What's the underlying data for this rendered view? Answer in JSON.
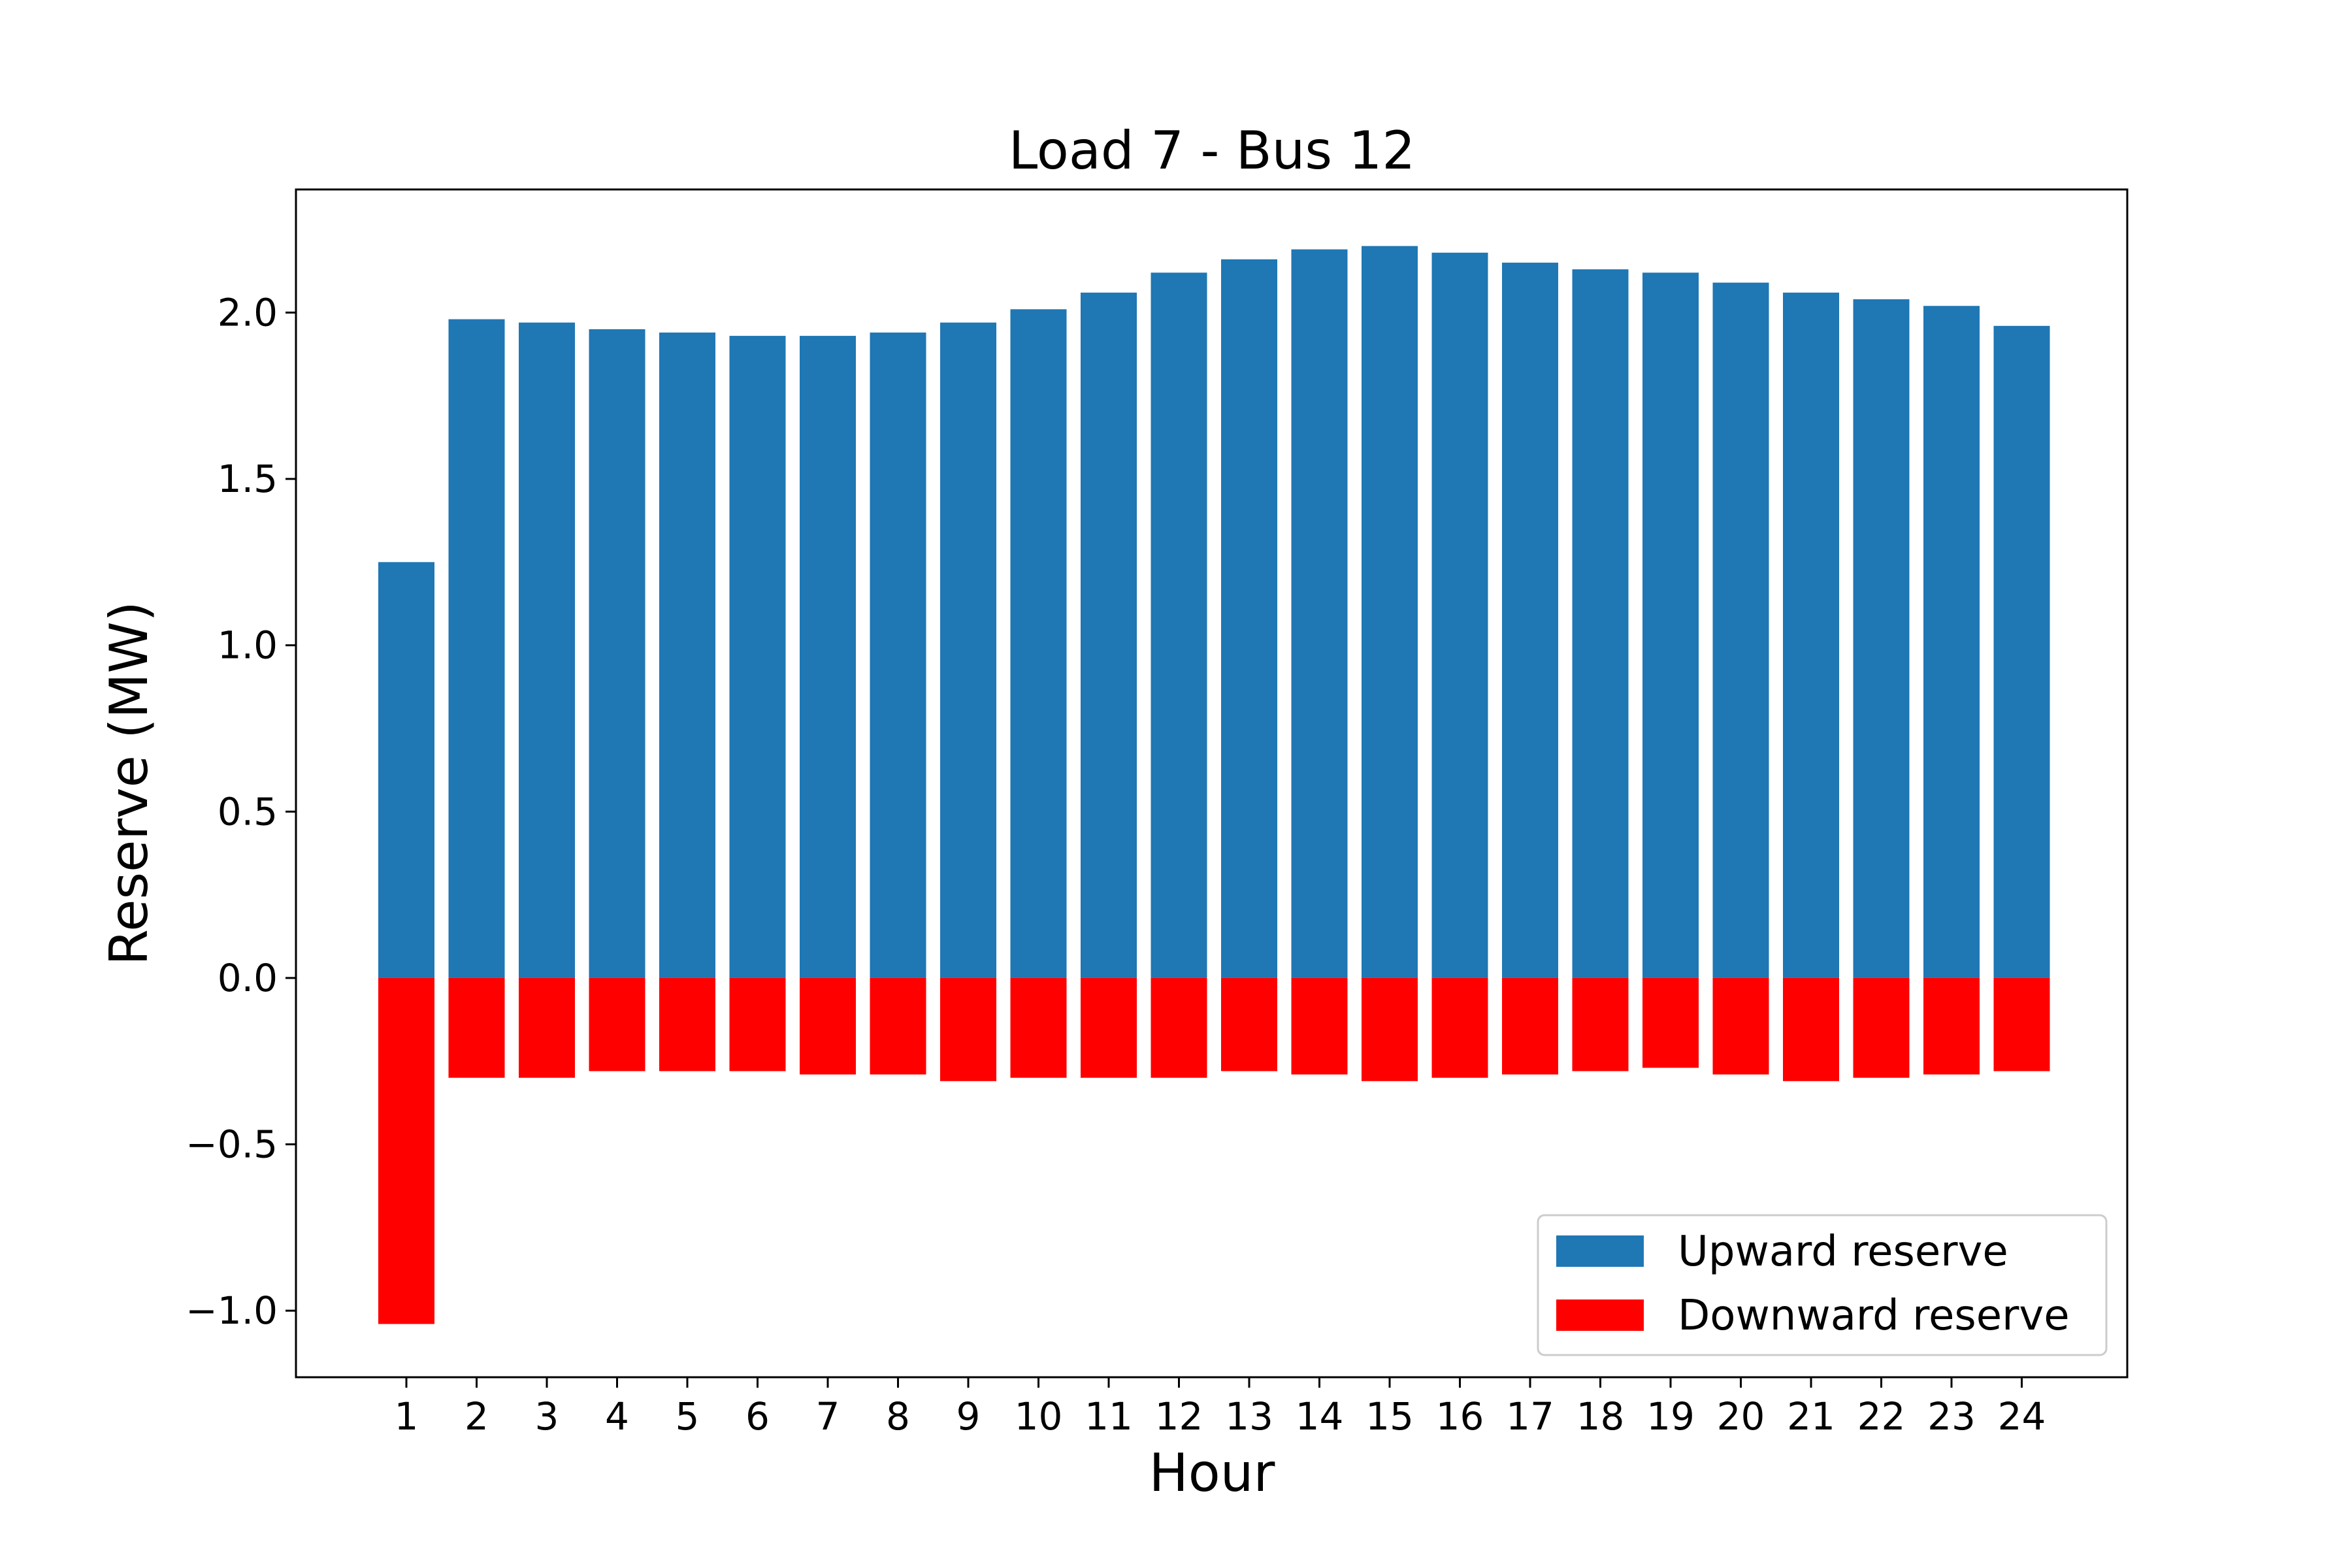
{
  "chart_data": {
    "type": "bar",
    "title": "Load 7 - Bus 12",
    "xlabel": "Hour",
    "ylabel": "Reserve (MW)",
    "categories": [
      "1",
      "2",
      "3",
      "4",
      "5",
      "6",
      "7",
      "8",
      "9",
      "10",
      "11",
      "12",
      "13",
      "14",
      "15",
      "16",
      "17",
      "18",
      "19",
      "20",
      "21",
      "22",
      "23",
      "24"
    ],
    "series": [
      {
        "name": "Upward reserve",
        "color": "#1f77b4",
        "values": [
          1.25,
          1.98,
          1.97,
          1.95,
          1.94,
          1.93,
          1.93,
          1.94,
          1.97,
          2.01,
          2.06,
          2.12,
          2.16,
          2.19,
          2.2,
          2.18,
          2.15,
          2.13,
          2.12,
          2.09,
          2.06,
          2.04,
          2.02,
          1.96
        ]
      },
      {
        "name": "Downward reserve",
        "color": "#ff0000",
        "values": [
          -1.04,
          -0.3,
          -0.3,
          -0.28,
          -0.28,
          -0.28,
          -0.29,
          -0.29,
          -0.31,
          -0.3,
          -0.3,
          -0.3,
          -0.28,
          -0.29,
          -0.31,
          -0.3,
          -0.29,
          -0.28,
          -0.27,
          -0.29,
          -0.31,
          -0.3,
          -0.29,
          -0.28
        ]
      }
    ],
    "ylim": [
      -1.2,
      2.37
    ],
    "yticks": [
      "−1.0",
      "−0.5",
      "0.0",
      "0.5",
      "1.0",
      "1.5",
      "2.0"
    ],
    "ytick_values": [
      -1.0,
      -0.5,
      0.0,
      0.5,
      1.0,
      1.5,
      2.0
    ],
    "grid": false,
    "legend_position": "lower-right"
  }
}
